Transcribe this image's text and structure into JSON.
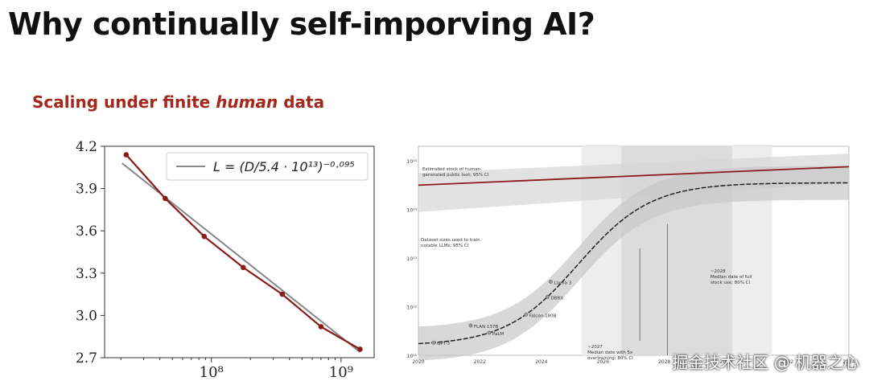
{
  "slide": {
    "title": "Why continually self-imporving AI?",
    "subtitle_pre": "Scaling under finite ",
    "subtitle_em": "human",
    "subtitle_post": " data",
    "watermark": "掘金技术社区 @ 机器之心"
  },
  "chart_data": [
    {
      "type": "line",
      "x": [
        22000000.0,
        44000000.0,
        88000000.0,
        176000000.0,
        352000000.0,
        700000000.0,
        1400000000.0
      ],
      "series": [
        {
          "values": [
            4.14,
            3.83,
            3.56,
            3.34,
            3.15,
            2.92,
            2.76
          ]
        }
      ],
      "fit": {
        "legend": "L = (D/5.4 · 10¹³)⁻⁰·⁰⁹⁵",
        "color": "#888888"
      },
      "xscale": "log",
      "xlim": [
        15000000.0,
        1800000000.0
      ],
      "ylim": [
        2.7,
        4.2
      ],
      "yticks": [
        "2.7",
        "3.0",
        "3.3",
        "3.6",
        "3.9",
        "4.2"
      ],
      "xticks": [
        "10⁸",
        "10⁹"
      ],
      "legend_position": "top-right",
      "colors": {
        "data": "#8b1a1a",
        "fit": "#888888"
      }
    },
    {
      "type": "line",
      "x_range": [
        2020,
        2034
      ],
      "xticks": [
        "2020",
        "2022",
        "2024",
        "2026",
        "2028",
        "2030",
        "2032",
        "2034"
      ],
      "yscale": "log",
      "yticks": [
        "10¹¹",
        "10¹²",
        "10¹³",
        "10¹⁴",
        "10¹⁵"
      ],
      "ylim": [
        100000000000.0,
        1000000000000000.0
      ],
      "series": [
        {
          "name": "Estimated stock of human-generated public text; 95% CI",
          "color": "#8b1a1a"
        },
        {
          "name": "Dataset sizes used to train notable LLMs; 95% CI",
          "color": "#222222"
        }
      ],
      "points": [
        {
          "label": "GPT-3",
          "x": 2020.5
        },
        {
          "label": "FLAN 137B",
          "x": 2021.7
        },
        {
          "label": "PaLM",
          "x": 2022.3
        },
        {
          "label": "Falcon-180B",
          "x": 2023.5
        },
        {
          "label": "DBRX",
          "x": 2024.2
        },
        {
          "label": "Llama 3",
          "x": 2024.3
        }
      ],
      "annotations": [
        "Estimated stock of human-generated public text; 95% CI",
        "Dataset sizes used to train notable LLMs; 95% CI",
        "~2028\nMedian date of full stock use; 80% CI",
        "~2027\nMedian date with 5x overtraining; 80% CI"
      ],
      "colors": {
        "stock": "#8b1a1a",
        "datasets": "#222222"
      }
    }
  ]
}
